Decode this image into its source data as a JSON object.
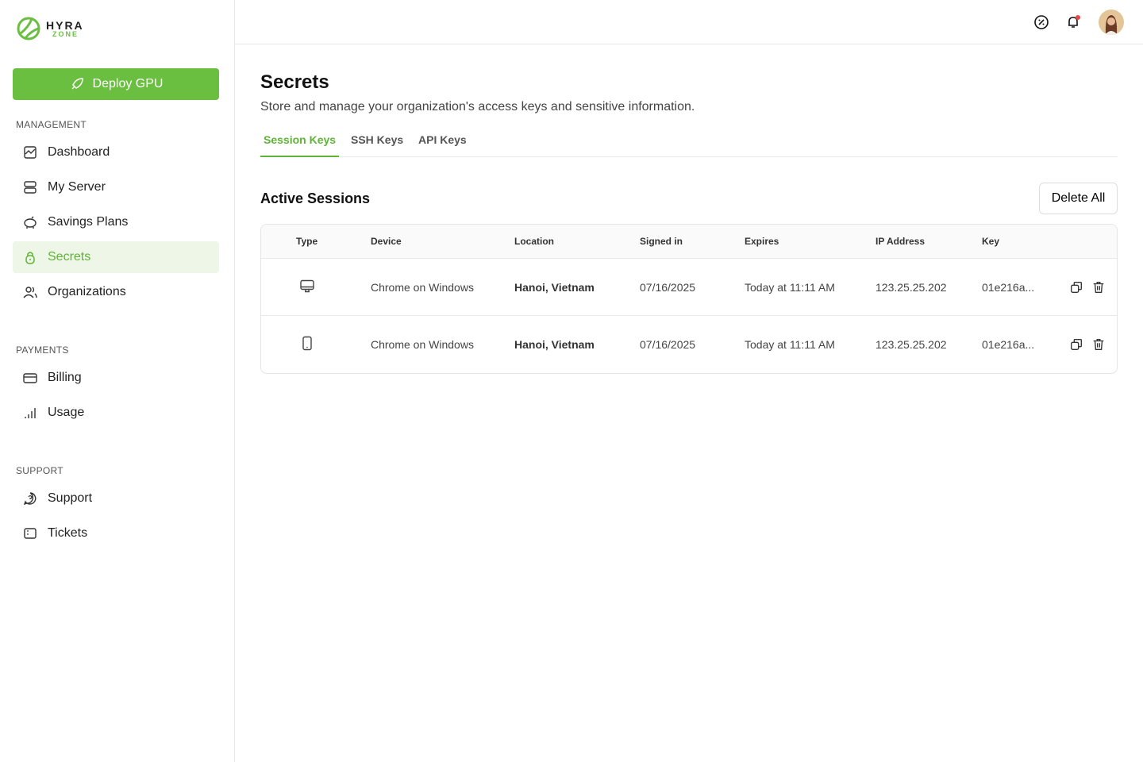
{
  "brand": {
    "name": "HYRA",
    "sub": "ZONE",
    "accent": "#6abf40"
  },
  "sidebar": {
    "deploy_label": "Deploy GPU",
    "sections": [
      {
        "title": "MANAGEMENT",
        "items": [
          {
            "label": "Dashboard",
            "icon": "chart-icon"
          },
          {
            "label": "My Server",
            "icon": "server-icon"
          },
          {
            "label": "Savings Plans",
            "icon": "piggy-bank-icon"
          },
          {
            "label": "Secrets",
            "icon": "lock-icon",
            "active": true
          },
          {
            "label": "Organizations",
            "icon": "users-icon"
          }
        ]
      },
      {
        "title": "PAYMENTS",
        "items": [
          {
            "label": "Billing",
            "icon": "credit-card-icon"
          },
          {
            "label": "Usage",
            "icon": "bar-signal-icon"
          }
        ]
      },
      {
        "title": "SUPPORT",
        "items": [
          {
            "label": "Support",
            "icon": "chat-help-icon"
          },
          {
            "label": "Tickets",
            "icon": "ticket-icon"
          }
        ]
      }
    ]
  },
  "header": {
    "notification_dot": "#ef4444"
  },
  "page": {
    "title": "Secrets",
    "subtitle": "Store and manage your organization's access keys and sensitive information.",
    "tabs": [
      {
        "label": "Session Keys",
        "active": true
      },
      {
        "label": "SSH Keys"
      },
      {
        "label": "API Keys"
      }
    ],
    "section_title": "Active Sessions",
    "delete_all": "Delete All",
    "columns": [
      "Type",
      "Device",
      "Location",
      "Signed in",
      "Expires",
      "IP Address",
      "Key"
    ],
    "rows": [
      {
        "type": "desktop",
        "device": "Chrome on Windows",
        "location": "Hanoi, Vietnam",
        "signed_in": "07/16/2025",
        "expires": "Today at 11:11 AM",
        "ip": "123.25.25.202",
        "key": "01e216a..."
      },
      {
        "type": "mobile",
        "device": "Chrome on Windows",
        "location": "Hanoi, Vietnam",
        "signed_in": "07/16/2025",
        "expires": "Today at 11:11 AM",
        "ip": "123.25.25.202",
        "key": "01e216a..."
      }
    ]
  }
}
